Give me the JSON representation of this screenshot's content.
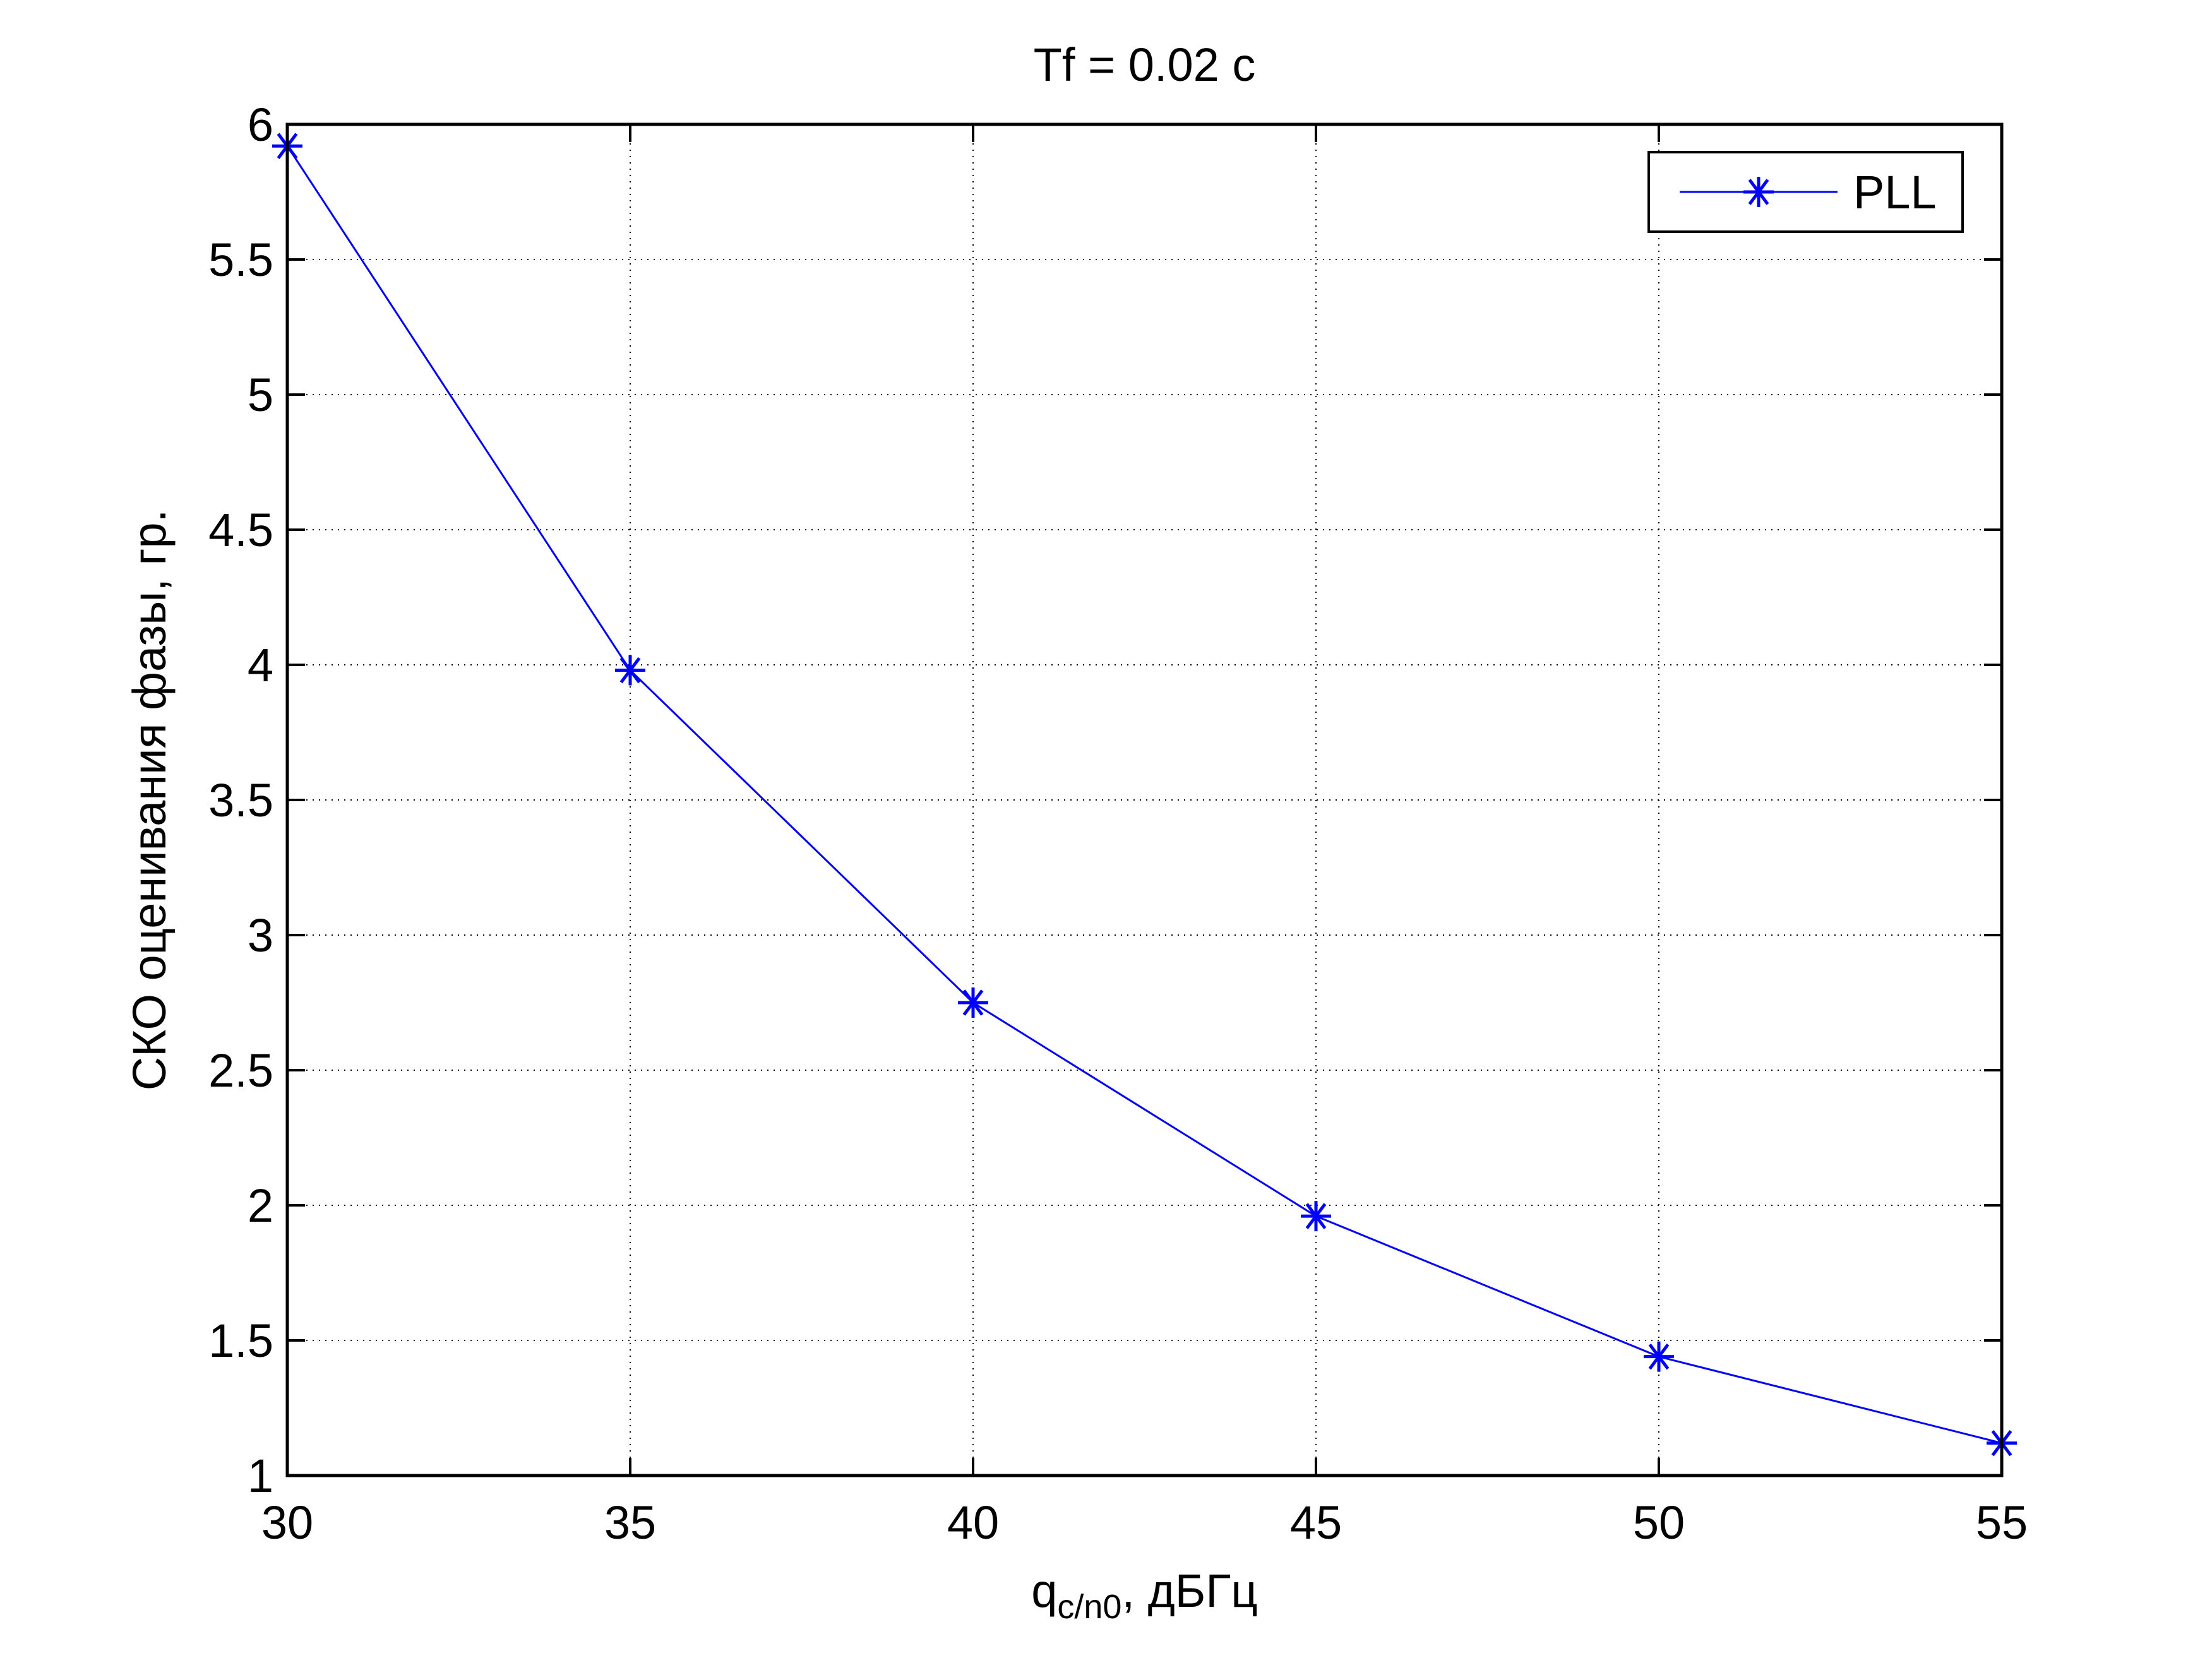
{
  "chart_data": {
    "type": "line",
    "title": "Tf = 0.02 c",
    "xlabel": "q",
    "xlabel_subscript": "c/n0",
    "xlabel_suffix": ", дБГц",
    "ylabel": "СКО оценивания фазы, гр.",
    "xlim": [
      30,
      55
    ],
    "ylim": [
      1,
      6
    ],
    "xticks": [
      "30",
      "35",
      "40",
      "45",
      "50",
      "55"
    ],
    "yticks": [
      "1",
      "1.5",
      "2",
      "2.5",
      "3",
      "3.5",
      "4",
      "4.5",
      "5",
      "5.5",
      "6"
    ],
    "grid": true,
    "legend_position": "top-right",
    "series": [
      {
        "name": "PLL",
        "color": "#0000ff",
        "marker": "asterisk",
        "x": [
          30,
          35,
          40,
          45,
          50,
          55
        ],
        "y": [
          5.92,
          3.98,
          2.75,
          1.96,
          1.44,
          1.12
        ]
      }
    ]
  }
}
